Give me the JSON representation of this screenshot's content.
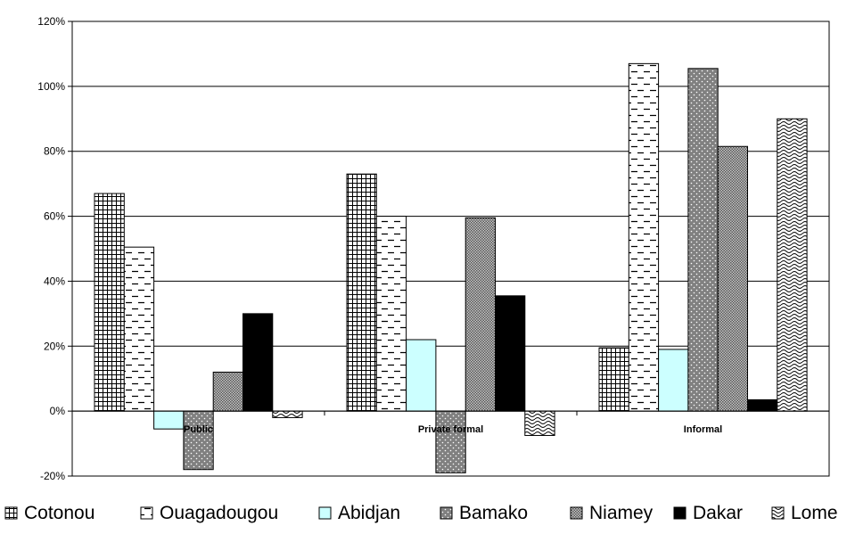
{
  "chart_data": {
    "type": "bar",
    "categories": [
      "Public",
      "Private formal",
      "Informal"
    ],
    "series": [
      {
        "name": "Cotonou",
        "values": [
          67,
          73,
          19.5
        ],
        "pattern": "grid",
        "color": "#ffffff"
      },
      {
        "name": "Ouagadougou",
        "values": [
          50.5,
          60,
          107
        ],
        "pattern": "dashes",
        "color": "#ffffff"
      },
      {
        "name": "Abidjan",
        "values": [
          -5.5,
          22,
          19
        ],
        "pattern": "solid",
        "color": "#ccffff"
      },
      {
        "name": "Bamako",
        "values": [
          -18,
          -19,
          105.5
        ],
        "pattern": "dots",
        "color": "#808080"
      },
      {
        "name": "Niamey",
        "values": [
          12,
          59.5,
          81.5
        ],
        "pattern": "checker",
        "color": "#969696"
      },
      {
        "name": "Dakar",
        "values": [
          30,
          35.5,
          3.5
        ],
        "pattern": "solid",
        "color": "#000000"
      },
      {
        "name": "Lome",
        "values": [
          -2,
          -7.5,
          90
        ],
        "pattern": "waves",
        "color": "#ffffff"
      }
    ],
    "yticks": [
      "-20%",
      "0%",
      "20%",
      "40%",
      "60%",
      "80%",
      "100%",
      "120%"
    ],
    "ylim": [
      -20,
      120
    ],
    "grid": true,
    "legend_position": "bottom"
  }
}
